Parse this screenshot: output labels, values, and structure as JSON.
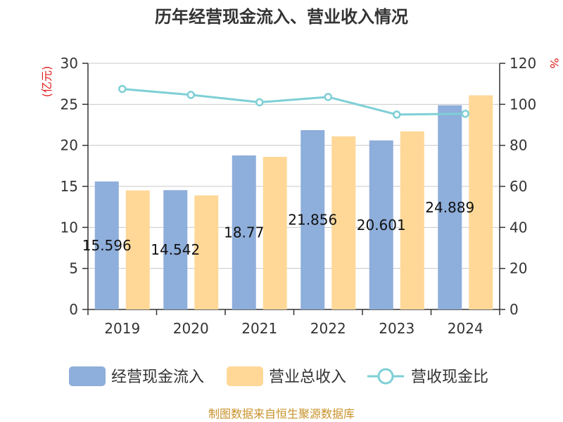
{
  "chart_data": {
    "type": "bar",
    "title": "历年经营现金流入、营业收入情况",
    "categories": [
      "2019",
      "2020",
      "2021",
      "2022",
      "2023",
      "2024"
    ],
    "series": [
      {
        "name": "经营现金流入",
        "kind": "bar",
        "axis": "left",
        "values": [
          15.596,
          14.542,
          18.77,
          21.856,
          20.601,
          24.889
        ],
        "labels": [
          "15.596",
          "14.542",
          "18.77",
          "21.856",
          "20.601",
          "24.889"
        ],
        "color": "#8eaedb"
      },
      {
        "name": "营业总收入",
        "kind": "bar",
        "axis": "left",
        "values": [
          14.5,
          13.9,
          18.6,
          21.1,
          21.7,
          26.1
        ],
        "color": "#ffd898"
      },
      {
        "name": "营收现金比",
        "kind": "line",
        "axis": "right",
        "values": [
          107.5,
          104.6,
          101.0,
          103.6,
          95.0,
          95.4
        ],
        "color": "#7ecfd6"
      }
    ],
    "y_left": {
      "label": "(亿元)",
      "min": 0,
      "max": 30,
      "ticks": [
        0,
        5,
        10,
        15,
        20,
        25,
        30
      ]
    },
    "y_right": {
      "label": "%",
      "min": 0,
      "max": 120,
      "ticks": [
        0,
        20,
        40,
        60,
        80,
        100,
        120
      ]
    },
    "grid": true,
    "legend_position": "bottom"
  },
  "source_text": "制图数据来自恒生聚源数据库"
}
